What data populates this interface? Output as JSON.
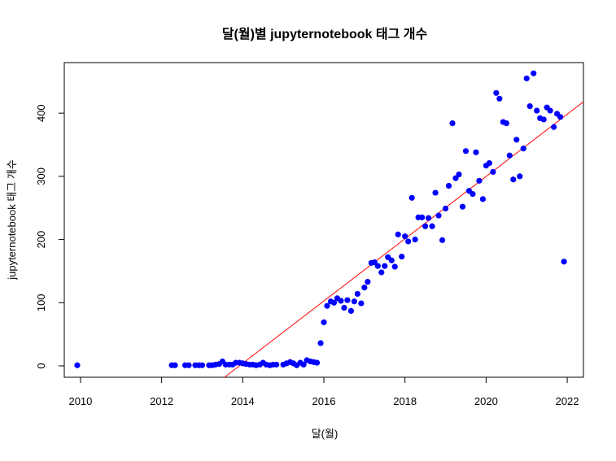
{
  "chart_data": {
    "type": "scatter",
    "title": "달(월)별 jupyternotebook 태그 개수",
    "xlabel": "달(월)",
    "ylabel": "jupyternotebook 태그 개수",
    "xlim": [
      2009.6,
      2022.4
    ],
    "ylim": [
      -18,
      480
    ],
    "x_ticks": [
      2010,
      2012,
      2014,
      2016,
      2018,
      2020,
      2022
    ],
    "y_ticks": [
      0,
      100,
      200,
      300,
      400
    ],
    "point_color": "#0000ff",
    "trend_color": "#ff0000",
    "trendline": {
      "x": [
        2013.55,
        2022.4
      ],
      "y": [
        -18,
        418
      ]
    },
    "series": [
      {
        "x": [
          2009.92,
          2012.25,
          2012.33,
          2012.58,
          2012.67,
          2012.83,
          2012.92,
          2013.0,
          2013.17,
          2013.25,
          2013.33,
          2013.42,
          2013.5,
          2013.58,
          2013.67,
          2013.75,
          2013.83,
          2013.92,
          2014.0,
          2014.08,
          2014.17,
          2014.25,
          2014.33,
          2014.42,
          2014.5,
          2014.58,
          2014.67,
          2014.75,
          2014.83,
          2015.0,
          2015.08,
          2015.17,
          2015.25,
          2015.33,
          2015.42,
          2015.5,
          2015.58,
          2015.67,
          2015.75,
          2015.83,
          2015.92,
          2016.0,
          2016.08,
          2016.17,
          2016.25,
          2016.33,
          2016.42,
          2016.5,
          2016.58,
          2016.67,
          2016.75,
          2016.83,
          2016.92,
          2017.0,
          2017.08,
          2017.17,
          2017.25,
          2017.33,
          2017.42,
          2017.5,
          2017.58,
          2017.67,
          2017.75,
          2017.83,
          2017.92,
          2018.0,
          2018.08,
          2018.17,
          2018.25,
          2018.33,
          2018.42,
          2018.5,
          2018.58,
          2018.67,
          2018.75,
          2018.83,
          2018.92,
          2019.0,
          2019.08,
          2019.17,
          2019.25,
          2019.33,
          2019.42,
          2019.5,
          2019.58,
          2019.67,
          2019.75,
          2019.83,
          2019.92,
          2020.0,
          2020.08,
          2020.17,
          2020.25,
          2020.33,
          2020.42,
          2020.5,
          2020.58,
          2020.67,
          2020.75,
          2020.83,
          2020.92,
          2021.0,
          2021.08,
          2021.17,
          2021.25,
          2021.33,
          2021.42,
          2021.5,
          2021.58,
          2021.67,
          2021.75,
          2021.83,
          2021.92
        ],
        "y": [
          1,
          1,
          1,
          1,
          1,
          1,
          1,
          1,
          1,
          1,
          2,
          3,
          7,
          2,
          2,
          2,
          5,
          5,
          4,
          3,
          2,
          2,
          1,
          2,
          5,
          2,
          1,
          2,
          2,
          2,
          4,
          6,
          4,
          1,
          5,
          2,
          9,
          7,
          6,
          5,
          36,
          69,
          95,
          102,
          100,
          107,
          103,
          92,
          104,
          87,
          102,
          114,
          99,
          124,
          133,
          163,
          164,
          158,
          148,
          158,
          172,
          167,
          157,
          208,
          173,
          205,
          197,
          266,
          200,
          235,
          235,
          221,
          234,
          221,
          274,
          238,
          199,
          249,
          285,
          384,
          297,
          303,
          252,
          340,
          277,
          272,
          338,
          293,
          264,
          317,
          321,
          307,
          432,
          423,
          386,
          384,
          333,
          295,
          358,
          300,
          344,
          455,
          411,
          463,
          404,
          392,
          390,
          409,
          404,
          378,
          399,
          394,
          165
        ]
      }
    ]
  }
}
